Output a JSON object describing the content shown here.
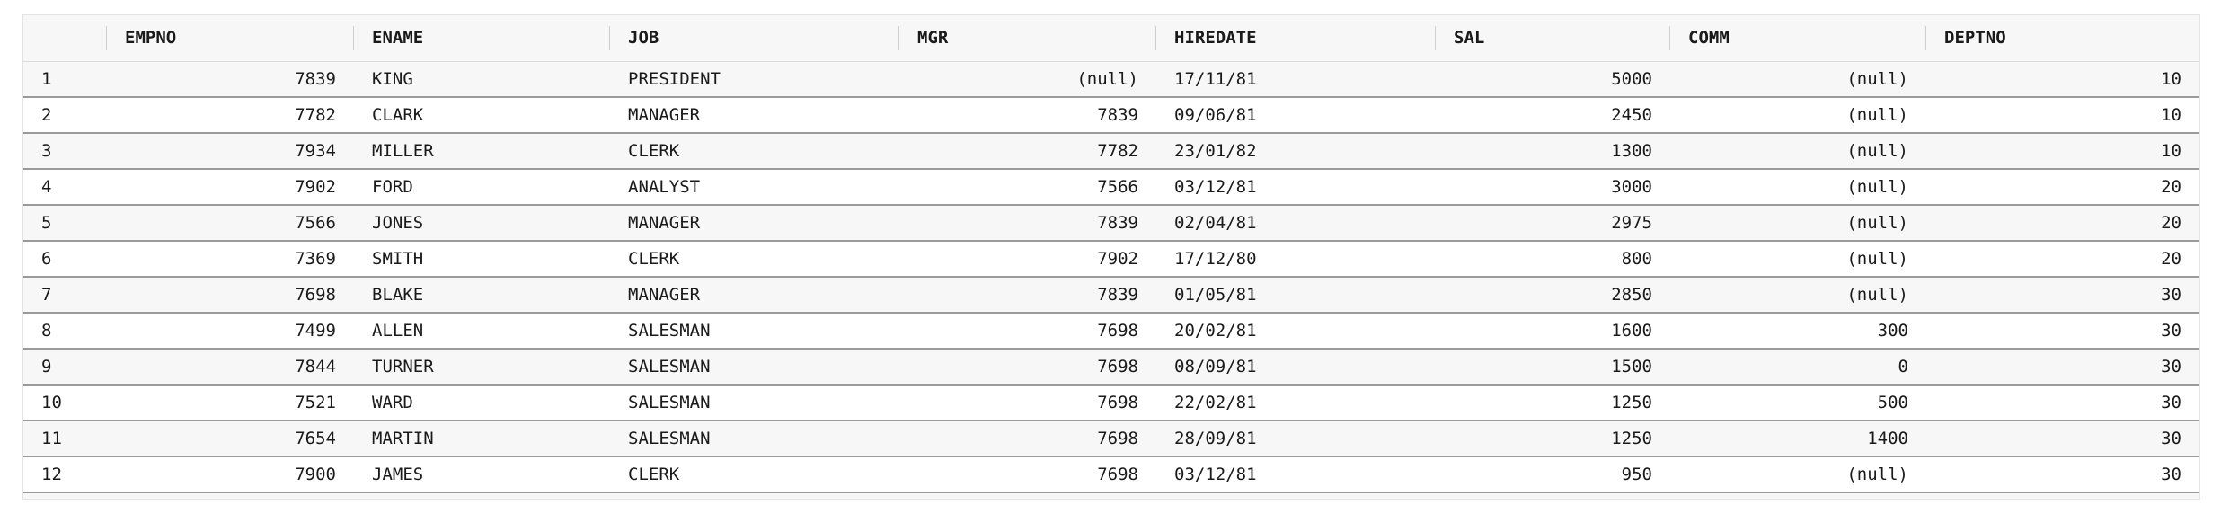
{
  "columns": [
    "EMPNO",
    "ENAME",
    "JOB",
    "MGR",
    "HIREDATE",
    "SAL",
    "COMM",
    "DEPTNO"
  ],
  "rows": [
    {
      "n": "1",
      "empno": "7839",
      "ename": "KING",
      "job": "PRESIDENT",
      "mgr": "(null)",
      "hiredate": "17/11/81",
      "sal": "5000",
      "comm": "(null)",
      "deptno": "10"
    },
    {
      "n": "2",
      "empno": "7782",
      "ename": "CLARK",
      "job": "MANAGER",
      "mgr": "7839",
      "hiredate": "09/06/81",
      "sal": "2450",
      "comm": "(null)",
      "deptno": "10"
    },
    {
      "n": "3",
      "empno": "7934",
      "ename": "MILLER",
      "job": "CLERK",
      "mgr": "7782",
      "hiredate": "23/01/82",
      "sal": "1300",
      "comm": "(null)",
      "deptno": "10"
    },
    {
      "n": "4",
      "empno": "7902",
      "ename": "FORD",
      "job": "ANALYST",
      "mgr": "7566",
      "hiredate": "03/12/81",
      "sal": "3000",
      "comm": "(null)",
      "deptno": "20"
    },
    {
      "n": "5",
      "empno": "7566",
      "ename": "JONES",
      "job": "MANAGER",
      "mgr": "7839",
      "hiredate": "02/04/81",
      "sal": "2975",
      "comm": "(null)",
      "deptno": "20"
    },
    {
      "n": "6",
      "empno": "7369",
      "ename": "SMITH",
      "job": "CLERK",
      "mgr": "7902",
      "hiredate": "17/12/80",
      "sal": "800",
      "comm": "(null)",
      "deptno": "20"
    },
    {
      "n": "7",
      "empno": "7698",
      "ename": "BLAKE",
      "job": "MANAGER",
      "mgr": "7839",
      "hiredate": "01/05/81",
      "sal": "2850",
      "comm": "(null)",
      "deptno": "30"
    },
    {
      "n": "8",
      "empno": "7499",
      "ename": "ALLEN",
      "job": "SALESMAN",
      "mgr": "7698",
      "hiredate": "20/02/81",
      "sal": "1600",
      "comm": "300",
      "deptno": "30"
    },
    {
      "n": "9",
      "empno": "7844",
      "ename": "TURNER",
      "job": "SALESMAN",
      "mgr": "7698",
      "hiredate": "08/09/81",
      "sal": "1500",
      "comm": "0",
      "deptno": "30"
    },
    {
      "n": "10",
      "empno": "7521",
      "ename": "WARD",
      "job": "SALESMAN",
      "mgr": "7698",
      "hiredate": "22/02/81",
      "sal": "1250",
      "comm": "500",
      "deptno": "30"
    },
    {
      "n": "11",
      "empno": "7654",
      "ename": "MARTIN",
      "job": "SALESMAN",
      "mgr": "7698",
      "hiredate": "28/09/81",
      "sal": "1250",
      "comm": "1400",
      "deptno": "30"
    },
    {
      "n": "12",
      "empno": "7900",
      "ename": "JAMES",
      "job": "CLERK",
      "mgr": "7698",
      "hiredate": "03/12/81",
      "sal": "950",
      "comm": "(null)",
      "deptno": "30"
    }
  ]
}
